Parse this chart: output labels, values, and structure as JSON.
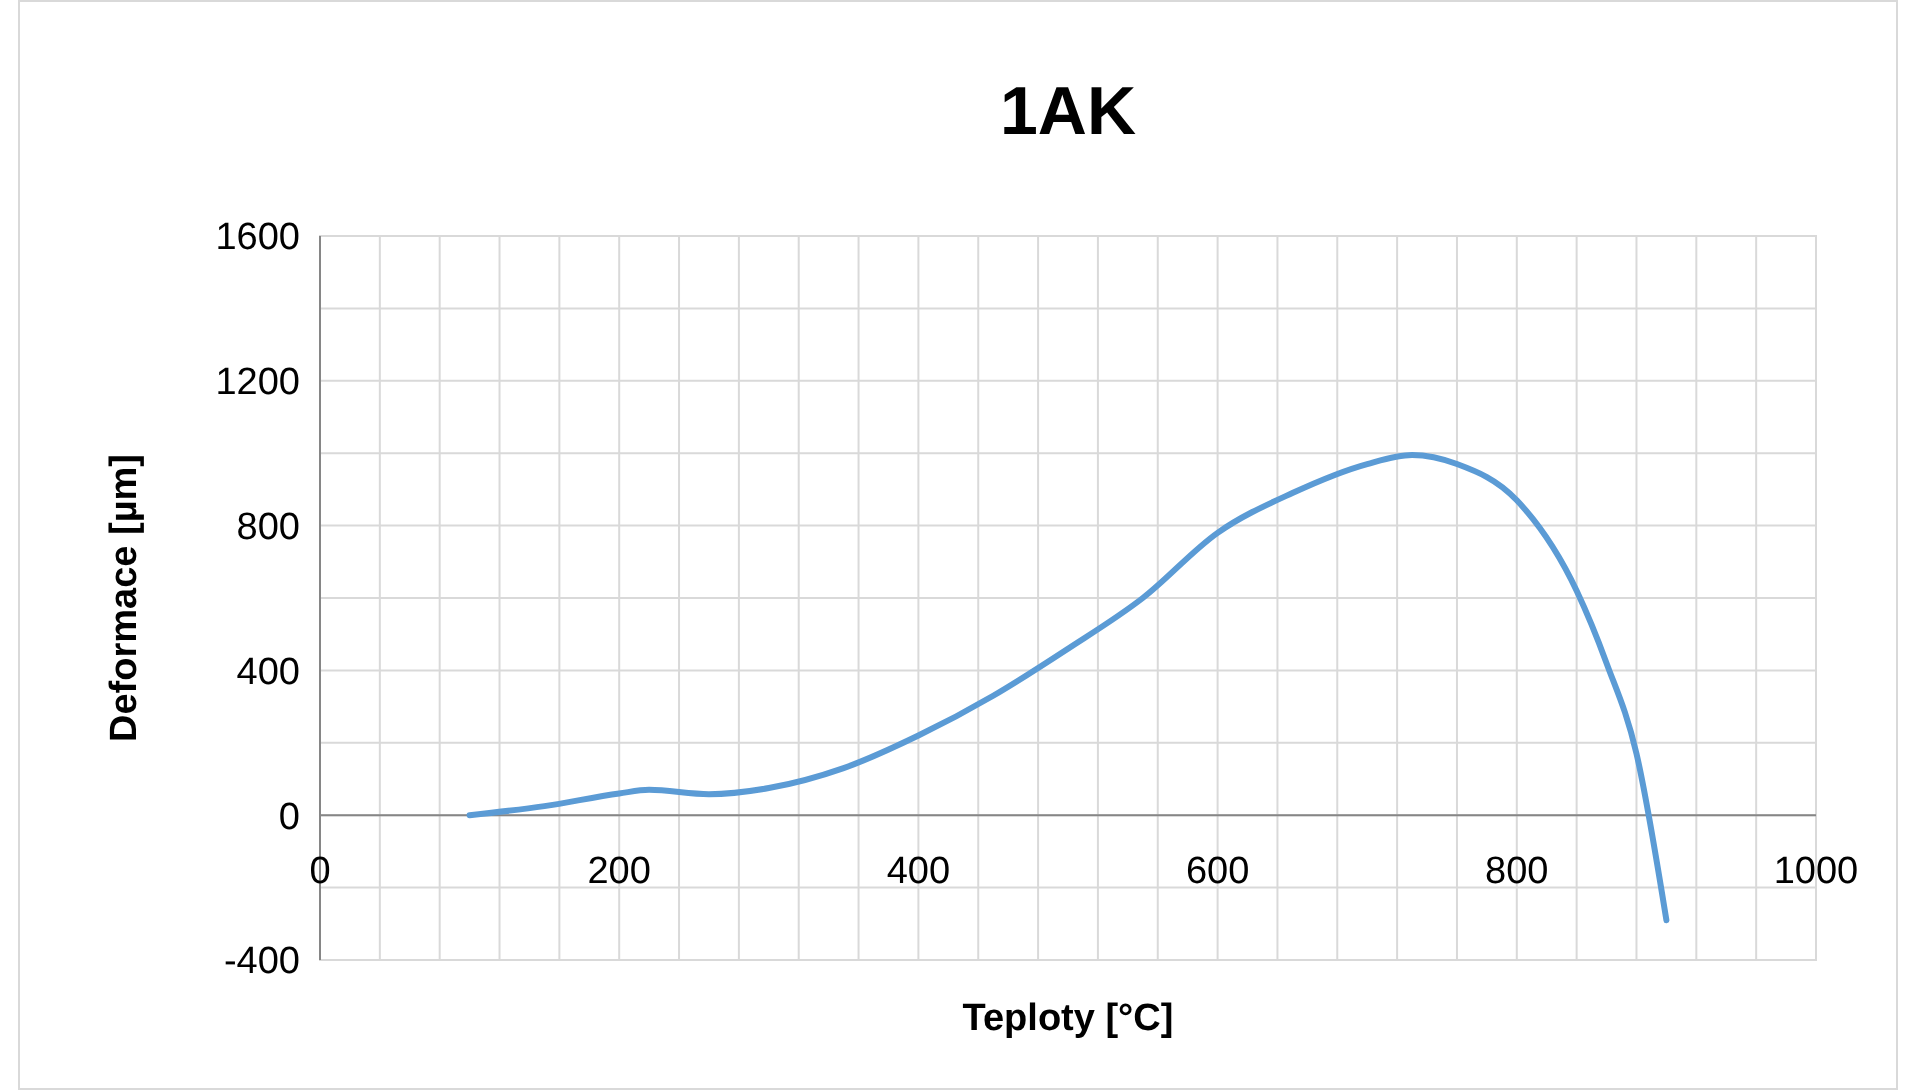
{
  "chart_data": {
    "type": "line",
    "title": "1AK",
    "xlabel": "Teploty [°C]",
    "ylabel": "Deformace [µm]",
    "xlim": [
      0,
      1000
    ],
    "ylim": [
      -400,
      1600
    ],
    "xticks": [
      0,
      {
        "value": 40,
        "label": null
      },
      {
        "value": 80,
        "label": null
      },
      {
        "value": 120,
        "label": null
      },
      {
        "value": 160,
        "label": null
      },
      200,
      {
        "value": 240,
        "label": null
      },
      {
        "value": 280,
        "label": null
      },
      {
        "value": 320,
        "label": null
      },
      {
        "value": 360,
        "label": null
      },
      400,
      {
        "value": 440,
        "label": null
      },
      {
        "value": 480,
        "label": null
      },
      {
        "value": 520,
        "label": null
      },
      {
        "value": 560,
        "label": null
      },
      600,
      {
        "value": 640,
        "label": null
      },
      {
        "value": 680,
        "label": null
      },
      {
        "value": 720,
        "label": null
      },
      {
        "value": 760,
        "label": null
      },
      800,
      {
        "value": 840,
        "label": null
      },
      {
        "value": 880,
        "label": null
      },
      {
        "value": 920,
        "label": null
      },
      {
        "value": 960,
        "label": null
      },
      1000
    ],
    "yticks": [
      -400,
      {
        "value": -200,
        "label": null
      },
      0,
      {
        "value": 200,
        "label": null
      },
      400,
      {
        "value": 600,
        "label": null
      },
      800,
      {
        "value": 1000,
        "label": null
      },
      1200,
      {
        "value": 1400,
        "label": null
      },
      1600
    ],
    "grid": true,
    "line_style": "solid",
    "series": [
      {
        "color": "#5b9bd5",
        "x": [
          100,
          150,
          200,
          220,
          260,
          300,
          350,
          400,
          450,
          500,
          550,
          600,
          650,
          700,
          730,
          760,
          800,
          840,
          860,
          880,
          900
        ],
        "values": [
          0,
          25,
          60,
          70,
          58,
          75,
          130,
          220,
          330,
          460,
          600,
          780,
          890,
          970,
          995,
          970,
          870,
          620,
          420,
          170,
          -290
        ]
      }
    ]
  }
}
